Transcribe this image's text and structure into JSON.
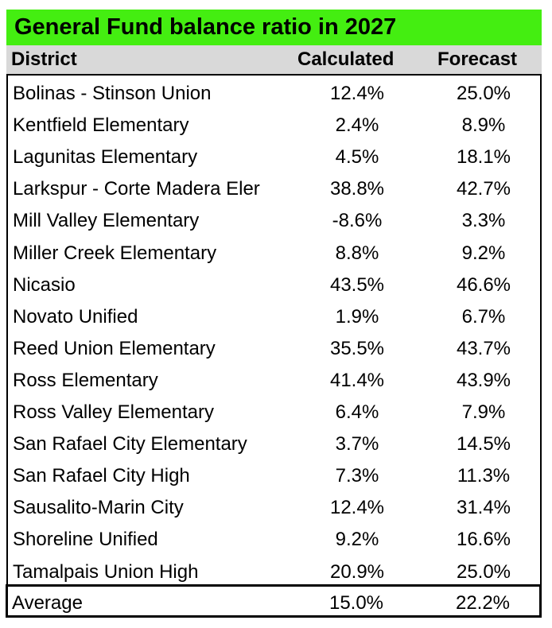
{
  "title": "General Fund balance ratio in 2027",
  "header": {
    "district": "District",
    "calculated": "Calculated",
    "forecast": "Forecast"
  },
  "rows": [
    {
      "district": "Bolinas - Stinson Union",
      "calculated": "12.4%",
      "forecast": "25.0%"
    },
    {
      "district": "Kentfield Elementary",
      "calculated": "2.4%",
      "forecast": "8.9%"
    },
    {
      "district": "Lagunitas Elementary",
      "calculated": "4.5%",
      "forecast": "18.1%"
    },
    {
      "district": "Larkspur - Corte Madera Eler",
      "calculated": "38.8%",
      "forecast": "42.7%"
    },
    {
      "district": "Mill Valley Elementary",
      "calculated": "-8.6%",
      "forecast": "3.3%"
    },
    {
      "district": "Miller Creek Elementary",
      "calculated": "8.8%",
      "forecast": "9.2%"
    },
    {
      "district": "Nicasio",
      "calculated": "43.5%",
      "forecast": "46.6%"
    },
    {
      "district": "Novato Unified",
      "calculated": "1.9%",
      "forecast": "6.7%"
    },
    {
      "district": "Reed Union Elementary",
      "calculated": "35.5%",
      "forecast": "43.7%"
    },
    {
      "district": "Ross Elementary",
      "calculated": "41.4%",
      "forecast": "43.9%"
    },
    {
      "district": "Ross Valley Elementary",
      "calculated": "6.4%",
      "forecast": "7.9%"
    },
    {
      "district": "San Rafael City Elementary",
      "calculated": "3.7%",
      "forecast": "14.5%"
    },
    {
      "district": "San Rafael City High",
      "calculated": "7.3%",
      "forecast": "11.3%"
    },
    {
      "district": "Sausalito-Marin City",
      "calculated": "12.4%",
      "forecast": "31.4%"
    },
    {
      "district": "Shoreline Unified",
      "calculated": "9.2%",
      "forecast": "16.6%"
    },
    {
      "district": "Tamalpais Union High",
      "calculated": "20.9%",
      "forecast": "25.0%"
    }
  ],
  "average": {
    "district": "Average",
    "calculated": "15.0%",
    "forecast": "22.2%"
  },
  "colors": {
    "title_bg": "#44ee11",
    "header_bg": "#d9d9d9"
  }
}
